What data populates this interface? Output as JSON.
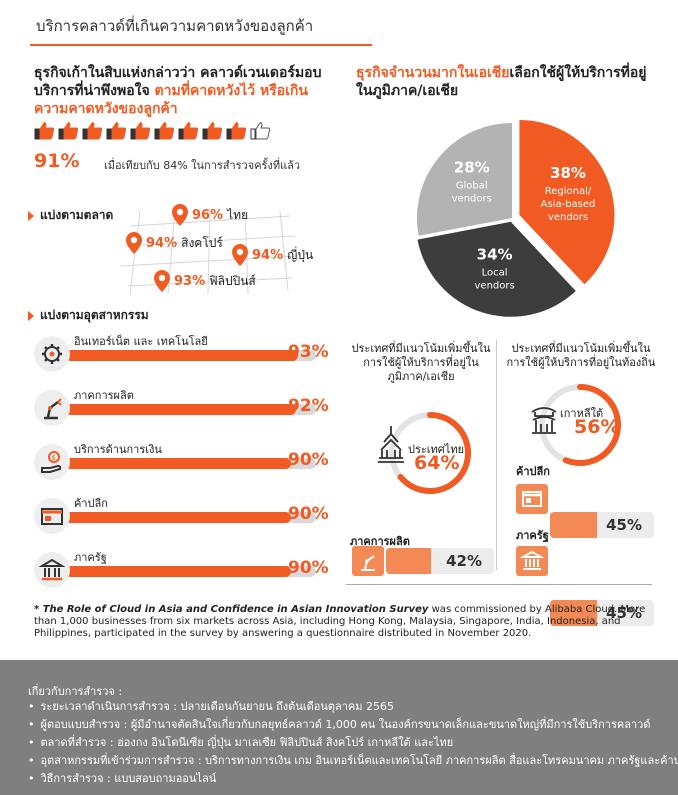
{
  "header": {
    "title": "บริการคลาวด์ที่เกินความคาดหวังของลูกค้า"
  },
  "left": {
    "title_part1": "ธุรกิจเก้าในสิบแห่งกล่าวว่า คลาวด์เวนเดอร์มอบบริการที่น่าพึงพอใจ ",
    "title_part2": "ตามที่คาดหวังไว้ หรือเกินความคาดหวังของลูกค้า",
    "thumbs_filled": 9,
    "thumbs_total": 10,
    "headline_value": "91%",
    "headline_compare": "เมื่อเทียบกับ 84% ในการสำรวจครั้งที่แล้ว",
    "market_label": "แบ่งตามตลาด",
    "markets": [
      {
        "value": "96%",
        "name": "ไทย"
      },
      {
        "value": "94%",
        "name": "สิงคโปร์"
      },
      {
        "value": "94%",
        "name": "ญี่ปุ่น"
      },
      {
        "value": "93%",
        "name": "ฟิลิปปินส์"
      }
    ],
    "industry_label": "แบ่งตามอุตสาหกรรม",
    "industries": [
      {
        "name": "อินเทอร์เน็ต และ เทคโนโลยี",
        "value": "93%",
        "pct": 93,
        "icon": "gear-icon"
      },
      {
        "name": "ภาคการผลิต",
        "value": "92%",
        "pct": 92,
        "icon": "robot-arm-icon"
      },
      {
        "name": "บริการด้านการเงิน",
        "value": "90%",
        "pct": 90,
        "icon": "money-hand-icon"
      },
      {
        "name": "ค้าปลีก",
        "value": "90%",
        "pct": 90,
        "icon": "shop-icon"
      },
      {
        "name": "ภาครัฐ",
        "value": "90%",
        "pct": 90,
        "icon": "government-icon"
      }
    ]
  },
  "right": {
    "title_part1": "ธุรกิจจำนวนมากในเอเชีย",
    "title_part2": "เลือกใช้ผู้ให้บริการที่อยู่ในภูมิภาค/เอเชีย",
    "col1_title": "ประเทศที่มีแนวโน้มเพิ่มขึ้นในการใช้ผู้ให้บริการที่อยู่ในภูมิภาค/เอเชีย",
    "col1_country": "ประเทศไทย",
    "col1_value": "64%",
    "col1_pct": 64,
    "col1_sub_label": "ภาคการผลิต",
    "col1_sub_value": "42%",
    "col1_sub_pct": 42,
    "col2_title": "ประเทศที่มีแนวโน้มเพิ่มขึ้นในการใช้ผู้ให้บริการที่อยู่ในท้องถิ่น",
    "col2_country": "เกาหลีใต้",
    "col2_value": "56%",
    "col2_pct": 56,
    "col2_sub1_label": "ค้าปลีก",
    "col2_sub1_value": "45%",
    "col2_sub1_pct": 45,
    "col2_sub2_label": "ภาครัฐ",
    "col2_sub2_value": "45%",
    "col2_sub2_pct": 45
  },
  "chart_data": {
    "type": "pie",
    "slices": [
      {
        "label_line1": "Regional/",
        "label_line2": "Asia-based",
        "label_line3": "vendors",
        "display": "38%",
        "value": 38,
        "color": "#f15a22"
      },
      {
        "label_line1": "Local",
        "label_line2": "vendors",
        "label_line3": "",
        "display": "34%",
        "value": 34,
        "color": "#3d3d3d"
      },
      {
        "label_line1": "Global",
        "label_line2": "vendors",
        "label_line3": "",
        "display": "28%",
        "value": 28,
        "color": "#b3b3b3"
      }
    ]
  },
  "footnote": {
    "survey_name": "* The Role of Cloud in Asia and Confidence in Asian Innovation Survey",
    "text": " was commissioned by Alibaba Cloud. More than 1,000 businesses from six markets across Asia, including Hong Kong, Malaysia, Singapore, India, Indonesia, and Philippines, participated in the survey by answering a questionnaire distributed in November 2020."
  },
  "about": {
    "title": "เกี่ยวกับการสำรวจ :",
    "items": [
      "ระยะเวลาดำเนินการสำรวจ : ปลายเดือนกันยายน ถึงต้นเดือนตุลาคม 2565",
      "ผู้ตอบแบบสำรวจ : ผู้มีอำนาจตัดสินใจเกี่ยวกับกลยุทธ์คลาวด์ 1,000 คน ในองค์กรขนาดเล็กและขนาดใหญ่ที่มีการใช้บริการคลาวด์",
      "ตลาดที่สำรวจ : ฮ่องกง อินโดนีเซีย ญี่ปุ่น มาเลเซีย ฟิลิปปินส์ สิงคโปร์ เกาหลีใต้ และไทย",
      "อุตสาหกรรมที่เข้าร่วมการสำรวจ : บริการทางการเงิน เกม อินเทอร์เน็ตและเทคโนโลยี ภาคการผลิต สื่อและโทรคมนาคม ภาครัฐและค้าปลีก",
      "วิธีการสำรวจ : แบบสอบถามออนไลน์"
    ]
  },
  "colors": {
    "accent": "#f15a22",
    "dark": "#3d3d3d",
    "grey": "#b3b3b3"
  }
}
